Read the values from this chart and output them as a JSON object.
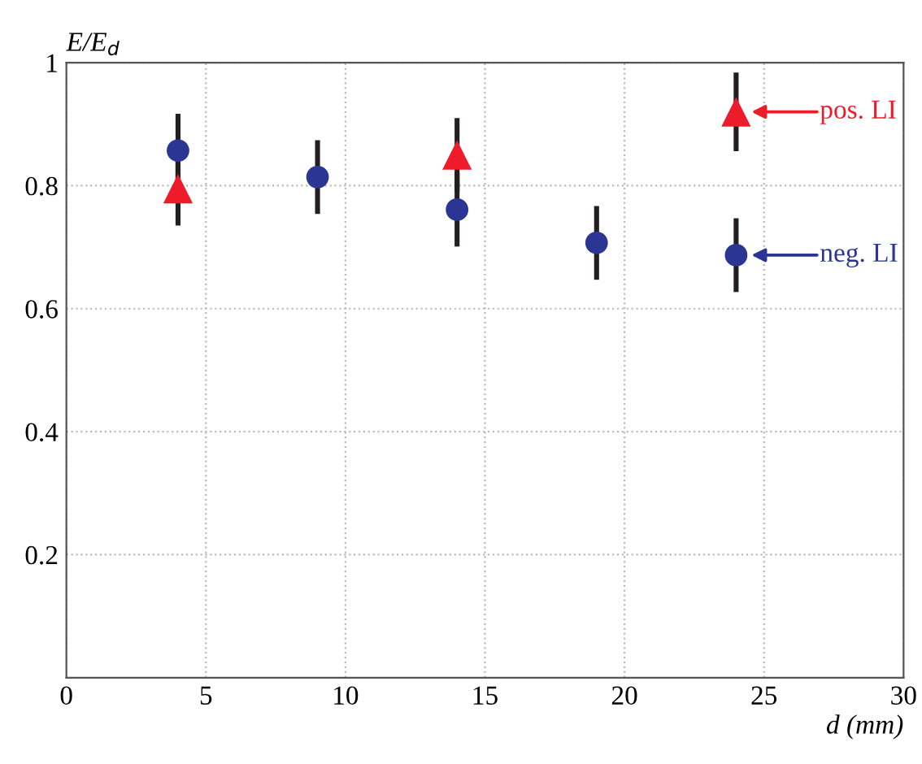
{
  "chart_data": {
    "type": "scatter",
    "xlabel": "d (mm)",
    "ylabel": "E/E$_{d}$",
    "xlim": [
      0,
      30
    ],
    "xticks": [
      0,
      5,
      10,
      15,
      20,
      25,
      30
    ],
    "ylim": [
      0,
      1
    ],
    "yticks": [
      0.2,
      0.4,
      0.6,
      0.8,
      1
    ],
    "grid": true,
    "series": [
      {
        "color": "#2b3594",
        "marker": "circle",
        "x": [
          4,
          9,
          14,
          19,
          24
        ],
        "values": [
          0.857,
          0.814,
          0.761,
          0.707,
          0.687
        ],
        "errors": [
          0.06,
          0.06,
          0.06,
          0.06,
          0.06
        ]
      },
      {
        "color": "#ee1c2a",
        "marker": "triangle",
        "x": [
          4,
          14,
          24
        ],
        "values": [
          0.795,
          0.85,
          0.92
        ],
        "errors": [
          0.06,
          0.06,
          0.064
        ]
      }
    ],
    "annotations": [
      "neg. LI",
      "pos. LI"
    ]
  }
}
